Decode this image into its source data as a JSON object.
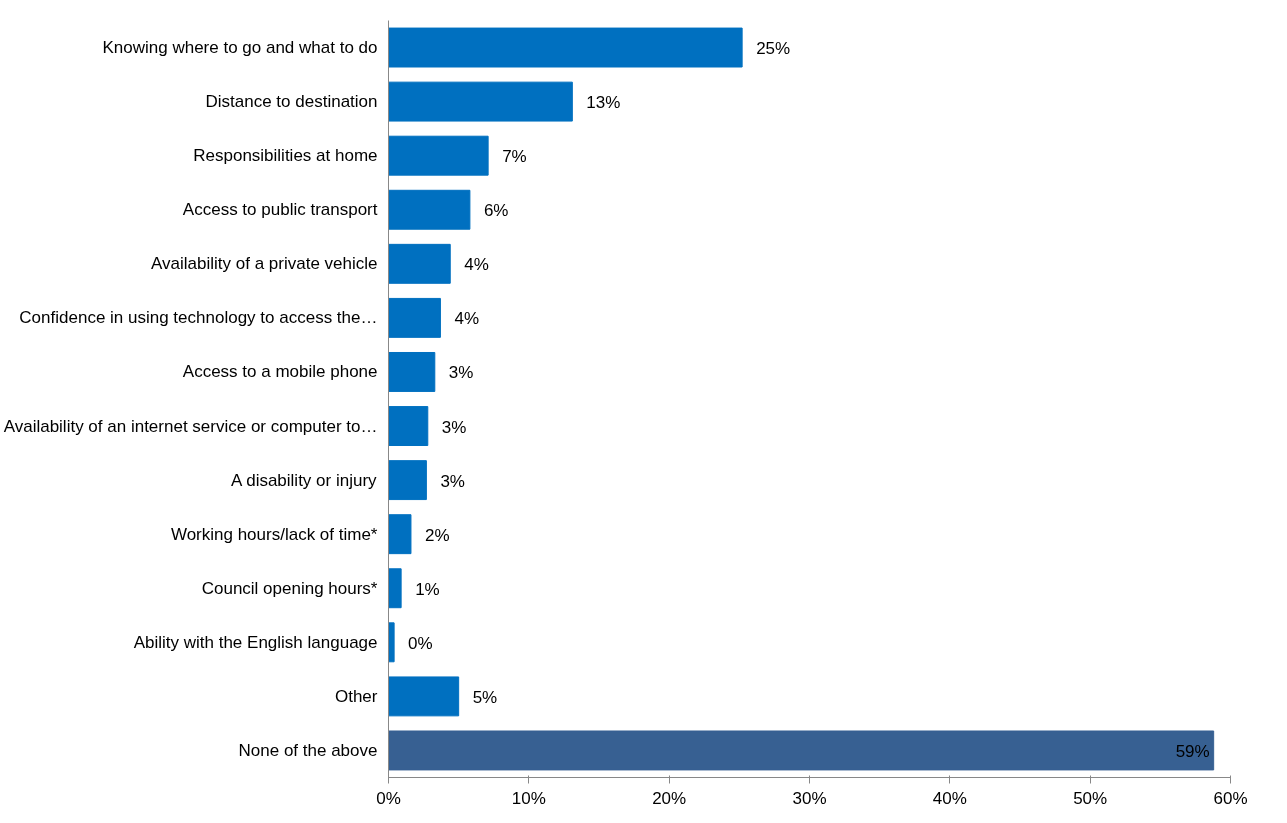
{
  "chart_data": {
    "type": "bar",
    "orientation": "horizontal",
    "categories": [
      "Knowing where to go and what to do",
      "Distance to destination",
      "Responsibilities at home",
      "Access to public transport",
      "Availability of a private vehicle",
      "Confidence in using technology to access the…",
      "Access to a mobile phone",
      "Availability of an internet service or computer to…",
      "A disability or injury",
      "Working hours/lack of time*",
      "Council opening hours*",
      "Ability with the English language",
      "Other",
      "None of the above"
    ],
    "values": [
      25.2,
      13.1,
      7.1,
      5.8,
      4.4,
      3.7,
      3.3,
      2.8,
      2.7,
      1.6,
      0.9,
      0.4,
      5.0,
      58.8
    ],
    "value_labels": [
      "25%",
      "13%",
      "7%",
      "6%",
      "4%",
      "4%",
      "3%",
      "3%",
      "3%",
      "2%",
      "1%",
      "0%",
      "5%",
      "59%"
    ],
    "colors": [
      "#0070c0",
      "#0070c0",
      "#0070c0",
      "#0070c0",
      "#0070c0",
      "#0070c0",
      "#0070c0",
      "#0070c0",
      "#0070c0",
      "#0070c0",
      "#0070c0",
      "#0070c0",
      "#0070c0",
      "#376092"
    ],
    "xlim": [
      0,
      60
    ],
    "xticks": [
      {
        "value": 0,
        "label": "0%"
      },
      {
        "value": 10,
        "label": "10%"
      },
      {
        "value": 20,
        "label": "20%"
      },
      {
        "value": 30,
        "label": "30%"
      },
      {
        "value": 40,
        "label": "40%"
      },
      {
        "value": 50,
        "label": "50%"
      },
      {
        "value": 60,
        "label": "60%"
      }
    ],
    "grid": false
  }
}
